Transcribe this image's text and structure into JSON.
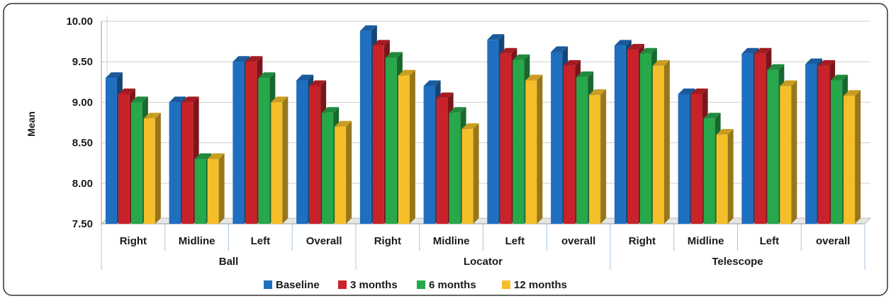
{
  "chart_data": {
    "type": "bar",
    "title": "",
    "xlabel": "",
    "ylabel": "Mean",
    "ylim": [
      7.5,
      10.0
    ],
    "yticks": [
      "7.50",
      "8.00",
      "8.50",
      "9.00",
      "9.50",
      "10.00"
    ],
    "yticks_values": [
      7.5,
      8.0,
      8.5,
      9.0,
      9.5,
      10.0
    ],
    "grid": true,
    "legend_position": "bottom",
    "groups": [
      {
        "label": "Ball",
        "categories": [
          "Right",
          "Midline",
          "Left",
          "Overall"
        ]
      },
      {
        "label": "Locator",
        "categories": [
          "Right",
          "Midline",
          "Left",
          "overall"
        ]
      },
      {
        "label": "Telescope",
        "categories": [
          "Right",
          "Midline",
          "Left",
          "overall"
        ]
      }
    ],
    "series": [
      {
        "name": "Baseline",
        "color": "#1f6fc0",
        "values": [
          9.3,
          9.0,
          9.5,
          9.27,
          9.88,
          9.2,
          9.77,
          9.62,
          9.7,
          9.1,
          9.6,
          9.47
        ]
      },
      {
        "name": "3 months",
        "color": "#c8222a",
        "values": [
          9.1,
          9.0,
          9.5,
          9.2,
          9.7,
          9.05,
          9.6,
          9.45,
          9.65,
          9.1,
          9.6,
          9.45
        ]
      },
      {
        "name": "6 months",
        "color": "#27a84a",
        "values": [
          9.0,
          8.3,
          9.3,
          8.87,
          9.55,
          8.87,
          9.52,
          9.31,
          9.6,
          8.8,
          9.4,
          9.27
        ]
      },
      {
        "name": "12 months",
        "color": "#f5bf2a",
        "values": [
          8.8,
          8.3,
          9.0,
          8.7,
          9.33,
          8.67,
          9.27,
          9.09,
          9.45,
          8.6,
          9.2,
          9.08
        ]
      }
    ]
  }
}
